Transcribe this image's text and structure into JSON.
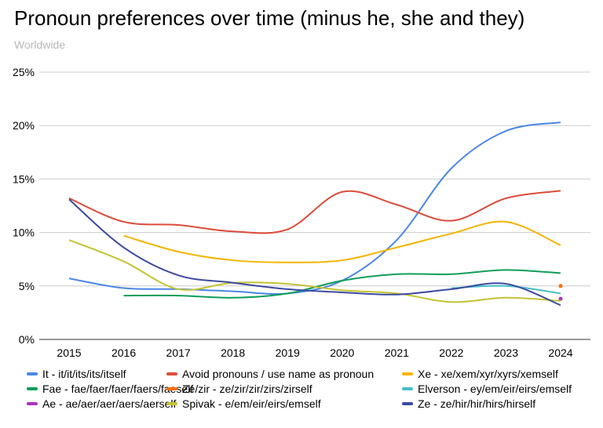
{
  "chart_data": {
    "type": "line",
    "title": "Pronoun preferences over time (minus he, she and they)",
    "subtitle": "Worldwide",
    "xlabel": "",
    "ylabel": "",
    "x": [
      2015,
      2016,
      2017,
      2018,
      2019,
      2020,
      2021,
      2022,
      2023,
      2024
    ],
    "ylim": [
      0,
      25
    ],
    "y_ticks": [
      "0%",
      "5%",
      "10%",
      "15%",
      "20%",
      "25%"
    ],
    "grid": true,
    "legend_position": "bottom",
    "series": [
      {
        "name": "It - it/it/its/its/itself",
        "color": "#4a86e8",
        "values": [
          5.7,
          4.8,
          4.7,
          4.5,
          4.3,
          5.5,
          9.3,
          16.0,
          19.5,
          20.3
        ]
      },
      {
        "name": "Avoid pronouns / use name as pronoun",
        "color": "#dd4b39",
        "values": [
          13.2,
          11.0,
          10.7,
          10.1,
          10.3,
          13.8,
          12.6,
          11.1,
          13.2,
          13.9
        ]
      },
      {
        "name": "Xe - xe/xem/xyr/xyrs/xemself",
        "color": "#f4b400",
        "values": [
          null,
          9.7,
          8.2,
          7.4,
          7.2,
          7.4,
          8.6,
          9.9,
          11.0,
          8.8
        ]
      },
      {
        "name": "Fae - fae/faer/faer/faers/faeself",
        "color": "#0f9d58",
        "values": [
          null,
          4.1,
          4.1,
          3.9,
          4.3,
          5.5,
          6.1,
          6.1,
          6.5,
          6.2
        ]
      },
      {
        "name": "Ze/zir - ze/zir/zir/zirs/zirself",
        "color": "#ff6d01",
        "values": [
          null,
          null,
          null,
          null,
          null,
          null,
          null,
          null,
          null,
          5.0
        ]
      },
      {
        "name": "Elverson - ey/em/eir/eirs/emself",
        "color": "#46bdc6",
        "values": [
          null,
          null,
          null,
          null,
          null,
          null,
          null,
          4.8,
          5.0,
          4.3
        ]
      },
      {
        "name": "Ae - ae/aer/aer/aers/aerself",
        "color": "#ab30c4",
        "values": [
          null,
          null,
          null,
          null,
          null,
          null,
          null,
          null,
          null,
          3.8
        ]
      },
      {
        "name": "Spivak - e/em/eir/eirs/emself",
        "color": "#c3c334",
        "values": [
          9.3,
          7.3,
          4.7,
          5.3,
          5.2,
          4.6,
          4.3,
          3.5,
          3.9,
          3.6
        ]
      },
      {
        "name": "Ze - ze/hir/hir/hirs/hirself",
        "color": "#3c4aa0",
        "values": [
          13.1,
          8.6,
          6.0,
          5.3,
          4.7,
          4.4,
          4.2,
          4.7,
          5.2,
          3.2
        ]
      }
    ]
  }
}
